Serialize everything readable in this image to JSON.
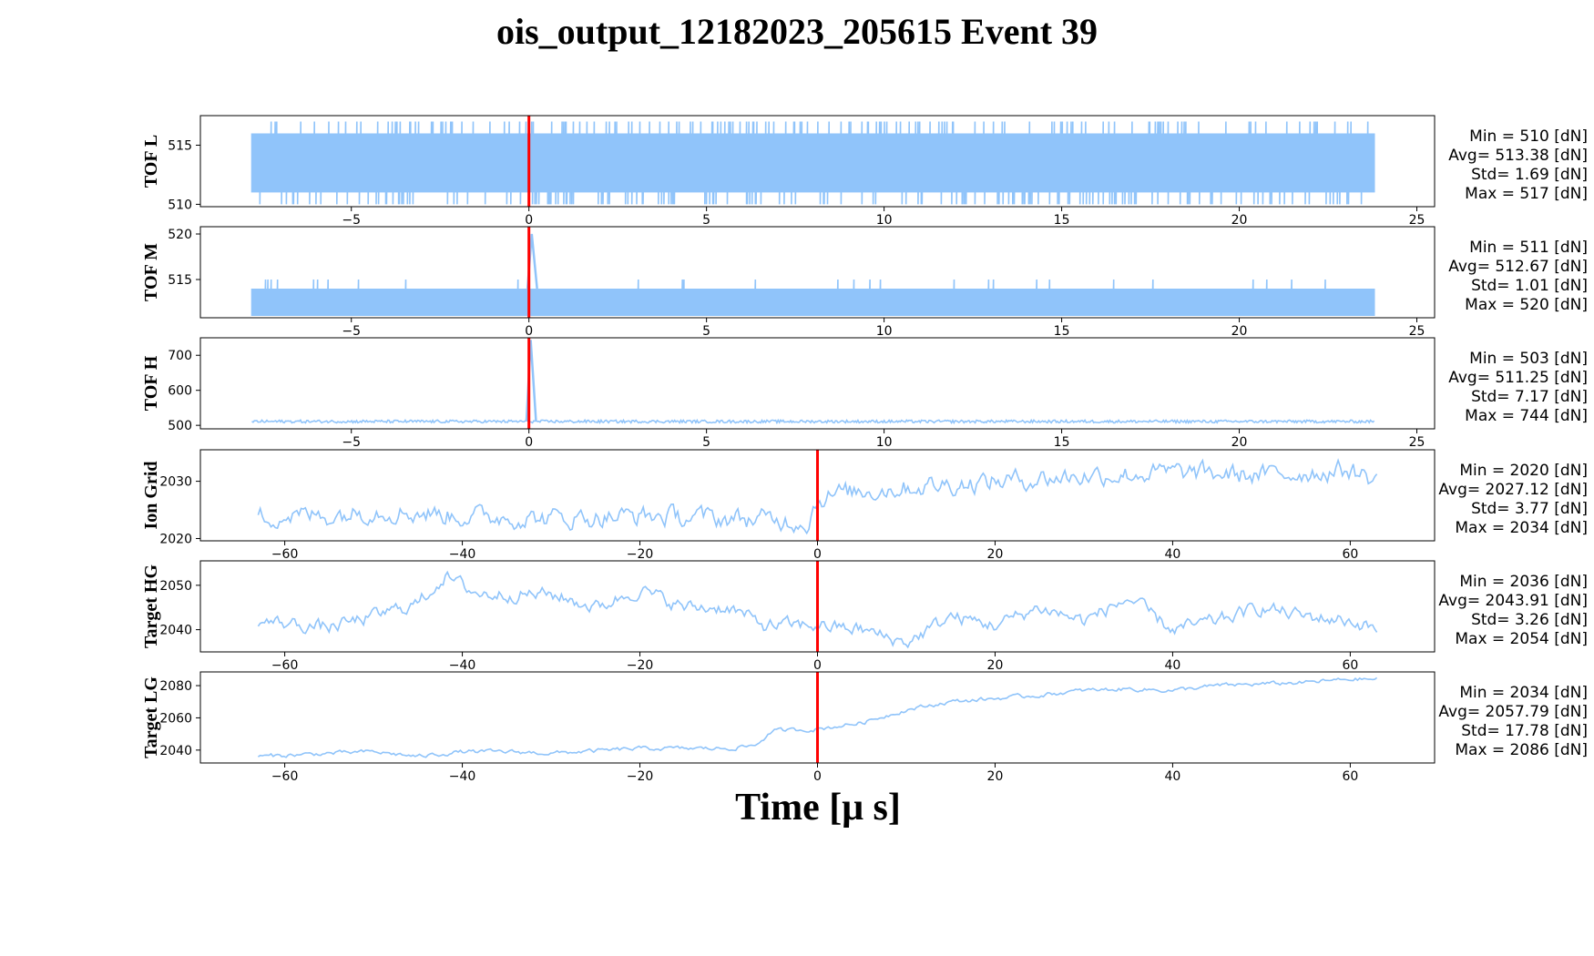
{
  "chart_data": {
    "type": "line",
    "title": "ois_output_12182023_205615 Event 39",
    "xlabel": "Time [μ s]",
    "line_color": "#90c4fa",
    "marker_color": "#ff0000",
    "marker_x": 0,
    "panels": [
      {
        "id": "tof-l",
        "ylabel": "TOF L",
        "xlim": [
          -9.25,
          25.5
        ],
        "xticks": [
          -5,
          0,
          5,
          10,
          15,
          20,
          25
        ],
        "ylim": [
          509.8,
          517.5
        ],
        "yticks": [
          510,
          515
        ],
        "x_range": [
          -7.8,
          23.8
        ],
        "kind": "digital",
        "base": 513,
        "lo": 511,
        "hi": 516,
        "min": 510,
        "max": 517,
        "extra_density": 0.9,
        "stats": [
          "Min = 510 [dN]",
          "Avg= 513.38 [dN]",
          "Std= 1.69 [dN]",
          "Max = 517 [dN]"
        ]
      },
      {
        "id": "tof-m",
        "ylabel": "TOF M",
        "xlim": [
          -9.25,
          25.5
        ],
        "xticks": [
          -5,
          0,
          5,
          10,
          15,
          20,
          25
        ],
        "ylim": [
          510.8,
          520.8
        ],
        "yticks": [
          515,
          520
        ],
        "x_range": [
          -7.8,
          23.8
        ],
        "kind": "digital",
        "base": 512.5,
        "lo": 511,
        "hi": 514,
        "min": 511,
        "max": 515,
        "extra_density": 0.2,
        "spike": {
          "x": 0.08,
          "y": 520
        },
        "stats": [
          "Min = 511 [dN]",
          "Avg= 512.67 [dN]",
          "Std= 1.01 [dN]",
          "Max = 520 [dN]"
        ]
      },
      {
        "id": "tof-h",
        "ylabel": "TOF H",
        "xlim": [
          -9.25,
          25.5
        ],
        "xticks": [
          -5,
          0,
          5,
          10,
          15,
          20,
          25
        ],
        "ylim": [
          490,
          750
        ],
        "yticks": [
          500,
          600,
          700
        ],
        "x_range": [
          -7.8,
          23.8
        ],
        "kind": "noise",
        "base": 511,
        "amp": 4,
        "spike": {
          "x": 0.05,
          "y": 744
        },
        "stats": [
          "Min = 503 [dN]",
          "Avg= 511.25 [dN]",
          "Std= 7.17 [dN]",
          "Max = 744 [dN]"
        ]
      },
      {
        "id": "ion-grid",
        "ylabel": "Ion Grid",
        "xlim": [
          -69.5,
          69.5
        ],
        "xticks": [
          -60,
          -40,
          -20,
          0,
          20,
          40,
          60
        ],
        "ylim": [
          2019.6,
          2035.5
        ],
        "yticks": [
          2020,
          2030
        ],
        "x_range": [
          -63,
          63
        ],
        "kind": "walk",
        "anchors": [
          [
            -63,
            2024
          ],
          [
            -55,
            2024
          ],
          [
            -50,
            2025
          ],
          [
            -40,
            2024
          ],
          [
            -30,
            2023.5
          ],
          [
            -20,
            2024
          ],
          [
            -10,
            2023.5
          ],
          [
            -1,
            2023
          ],
          [
            0,
            2027
          ],
          [
            3,
            2028
          ],
          [
            10,
            2029
          ],
          [
            20,
            2030
          ],
          [
            30,
            2031
          ],
          [
            40,
            2031.5
          ],
          [
            50,
            2031
          ],
          [
            60,
            2032
          ],
          [
            63,
            2030
          ]
        ],
        "amp": 1.8,
        "stats": [
          "Min = 2020 [dN]",
          "Avg= 2027.12 [dN]",
          "Std= 3.77 [dN]",
          "Max = 2034 [dN]"
        ]
      },
      {
        "id": "target-hg",
        "ylabel": "Target HG",
        "xlim": [
          -69.5,
          69.5
        ],
        "xticks": [
          -60,
          -40,
          -20,
          0,
          20,
          40,
          60
        ],
        "ylim": [
          2035,
          2055.5
        ],
        "yticks": [
          2040,
          2050
        ],
        "x_range": [
          -63,
          63
        ],
        "kind": "walk",
        "anchors": [
          [
            -63,
            2042
          ],
          [
            -55,
            2040.5
          ],
          [
            -50,
            2043
          ],
          [
            -45,
            2046
          ],
          [
            -42,
            2052
          ],
          [
            -38,
            2048
          ],
          [
            -30,
            2048
          ],
          [
            -25,
            2045
          ],
          [
            -20,
            2049
          ],
          [
            -15,
            2045
          ],
          [
            -10,
            2045
          ],
          [
            -6,
            2041
          ],
          [
            0,
            2041
          ],
          [
            5,
            2040
          ],
          [
            10,
            2037
          ],
          [
            15,
            2043
          ],
          [
            20,
            2041
          ],
          [
            25,
            2045
          ],
          [
            30,
            2042
          ],
          [
            35,
            2047
          ],
          [
            40,
            2040
          ],
          [
            45,
            2042
          ],
          [
            50,
            2045
          ],
          [
            55,
            2043
          ],
          [
            60,
            2042
          ],
          [
            63,
            2040
          ]
        ],
        "amp": 1.6,
        "stats": [
          "Min = 2036 [dN]",
          "Avg= 2043.91 [dN]",
          "Std= 3.26 [dN]",
          "Max = 2054 [dN]"
        ]
      },
      {
        "id": "target-lg",
        "ylabel": "Target LG",
        "xlim": [
          -69.5,
          69.5
        ],
        "xticks": [
          -60,
          -40,
          -20,
          0,
          20,
          40,
          60
        ],
        "ylim": [
          2032,
          2088.5
        ],
        "yticks": [
          2040,
          2060,
          2080
        ],
        "x_range": [
          -63,
          63
        ],
        "kind": "walk",
        "anchors": [
          [
            -63,
            2036
          ],
          [
            -55,
            2038
          ],
          [
            -50,
            2039
          ],
          [
            -45,
            2036
          ],
          [
            -40,
            2039
          ],
          [
            -35,
            2039
          ],
          [
            -30,
            2038
          ],
          [
            -20,
            2041
          ],
          [
            -10,
            2041
          ],
          [
            -7,
            2043
          ],
          [
            -5,
            2052
          ],
          [
            0,
            2053
          ],
          [
            5,
            2057
          ],
          [
            10,
            2065
          ],
          [
            15,
            2070
          ],
          [
            20,
            2072
          ],
          [
            25,
            2074
          ],
          [
            30,
            2077
          ],
          [
            35,
            2078
          ],
          [
            40,
            2077
          ],
          [
            45,
            2080
          ],
          [
            50,
            2081
          ],
          [
            55,
            2082
          ],
          [
            60,
            2084
          ],
          [
            63,
            2084
          ]
        ],
        "amp": 1.3,
        "stats": [
          "Min = 2034 [dN]",
          "Avg= 2057.79 [dN]",
          "Std= 17.78 [dN]",
          "Max = 2086 [dN]"
        ]
      }
    ]
  }
}
